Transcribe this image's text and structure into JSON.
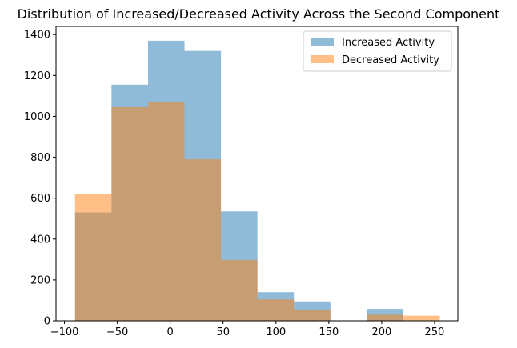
{
  "chart_data": {
    "type": "bar",
    "title": "Distribution of Increased/Decreased Activity Across the Second Component",
    "xlabel": "",
    "ylabel": "",
    "xlim": [
      -108,
      272
    ],
    "ylim": [
      0,
      1440
    ],
    "xticks": [
      -100,
      -50,
      0,
      50,
      100,
      150,
      200,
      250
    ],
    "yticks": [
      0,
      200,
      400,
      600,
      800,
      1000,
      1200,
      1400
    ],
    "bin_edges": [
      -90,
      -55.5,
      -21,
      13.5,
      48,
      82.5,
      117,
      151.5,
      186,
      220.5,
      255
    ],
    "grid": false,
    "legend_position": "top-right",
    "series": [
      {
        "name": "Increased Activity",
        "color": "#1f77b4",
        "alpha": 0.5,
        "values": [
          530,
          1155,
          1370,
          1320,
          535,
          140,
          95,
          0,
          58,
          0
        ]
      },
      {
        "name": "Decreased Activity",
        "color": "#ff7f0e",
        "alpha": 0.5,
        "values": [
          620,
          1045,
          1070,
          790,
          298,
          105,
          55,
          0,
          30,
          25
        ]
      }
    ]
  }
}
